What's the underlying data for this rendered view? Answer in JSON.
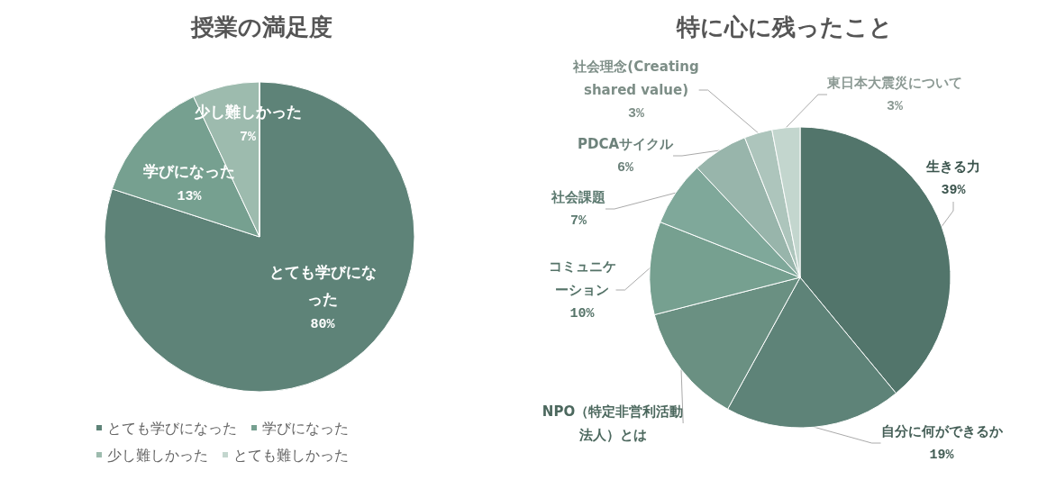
{
  "chart_data": [
    {
      "type": "pie",
      "title": "授業の満足度",
      "categories": [
        "とても学びになった",
        "学びになった",
        "少し難しかった",
        "とても難しかった"
      ],
      "values": [
        80,
        13,
        7,
        0
      ],
      "value_labels": [
        "80%",
        "13%",
        "7%",
        null
      ],
      "colors": [
        "#5e8378",
        "#76a090",
        "#9dbbae",
        "#c3d6ce"
      ],
      "legend": "bottom"
    },
    {
      "type": "pie",
      "title": "特に心に残ったこと",
      "categories": [
        "生きる力",
        "自分に何ができるか",
        "NPO（特定非営利活動法人）とは",
        "コミュニケーション",
        "社会課題",
        "PDCAサイクル",
        "社会理念(Creating shared value)",
        "東日本大震災について"
      ],
      "values": [
        39,
        19,
        13,
        10,
        7,
        6,
        3,
        3
      ],
      "value_labels": [
        "39%",
        "19%",
        null,
        "10%",
        "7%",
        "6%",
        "3%",
        "3%"
      ],
      "colors": [
        "#52756b",
        "#5e8378",
        "#6a9082",
        "#76a090",
        "#7fa89a",
        "#98b5ab",
        "#adc5bc",
        "#c3d6ce"
      ]
    }
  ]
}
